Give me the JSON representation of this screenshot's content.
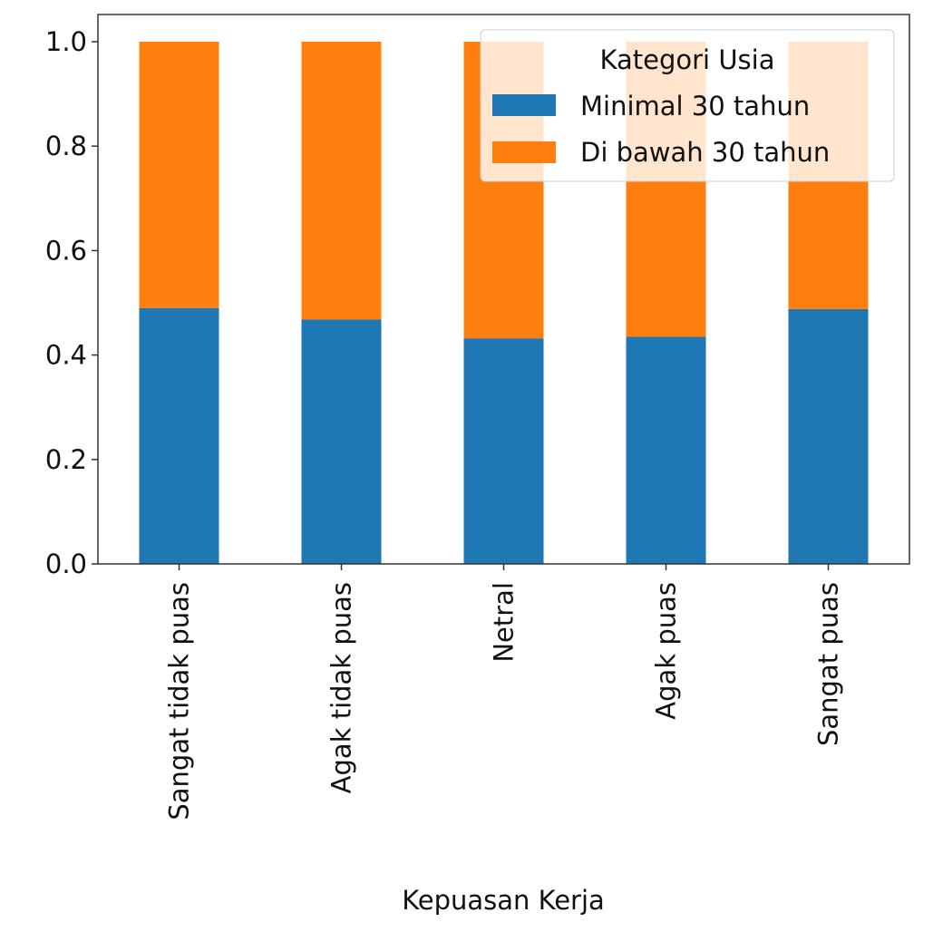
{
  "chart_data": {
    "type": "bar",
    "stacked": true,
    "categories": [
      "Sangat tidak puas",
      "Agak tidak puas",
      "Netral",
      "Agak puas",
      "Sangat puas"
    ],
    "series": [
      {
        "name": "Minimal 30 tahun",
        "color": "#1f77b4",
        "values": [
          0.49,
          0.468,
          0.432,
          0.435,
          0.488
        ]
      },
      {
        "name": "Di bawah 30 tahun",
        "color": "#ff7f0e",
        "values": [
          0.51,
          0.532,
          0.568,
          0.565,
          0.512
        ]
      }
    ],
    "title": "",
    "xlabel": "Kepuasan Kerja",
    "ylabel": "",
    "ylim": [
      0,
      1.05
    ],
    "yticks": [
      "0.0",
      "0.2",
      "0.4",
      "0.6",
      "0.8",
      "1.0"
    ],
    "grid": false,
    "legend": {
      "title": "Kategori Usia",
      "placement": "top-right"
    }
  }
}
